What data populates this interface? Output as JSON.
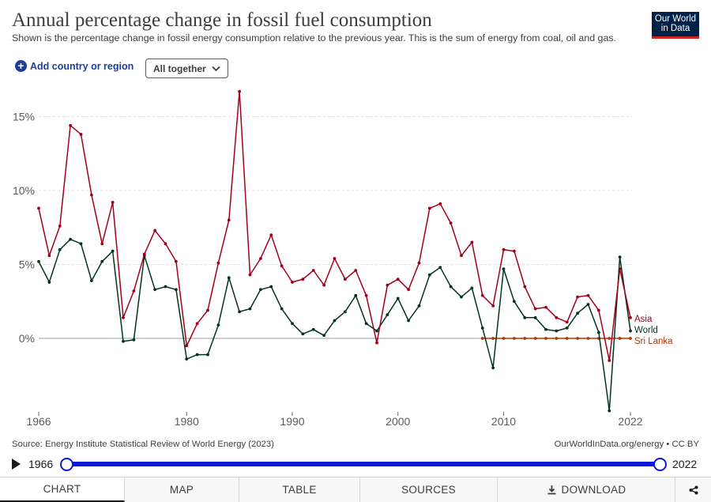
{
  "header": {
    "title": "Annual percentage change in fossil fuel consumption",
    "subtitle": "Shown is the percentage change in fossil energy consumption relative to the previous year. This is the sum of energy from coal, oil and gas.",
    "logo_line1": "Our World",
    "logo_line2": "in Data"
  },
  "controls": {
    "add_label": "Add country or region",
    "select_value": "All together"
  },
  "footer": {
    "source": "Source: Energy Institute Statistical Review of World Energy (2023)",
    "origin": "OurWorldInData.org/energy • CC BY"
  },
  "timeline": {
    "start": "1966",
    "end": "2022"
  },
  "tabs": [
    "CHART",
    "MAP",
    "TABLE",
    "SOURCES",
    "DOWNLOAD"
  ],
  "colors": {
    "asia": "#a2001a",
    "world": "#00341c",
    "sri_lanka": "#b13507",
    "zero_line": "#9e9e9e",
    "grid": "#dddddd",
    "accent": "#0b1ad6"
  },
  "icons": {
    "play": "play-icon",
    "add": "plus-circle-icon",
    "select": "chevron-down-icon",
    "download": "download-icon",
    "share": "share-icon"
  },
  "chart_data": {
    "type": "line",
    "title": "Annual percentage change in fossil fuel consumption",
    "xlim": [
      1966,
      2022
    ],
    "ylim": [
      -5,
      17
    ],
    "x_ticks": [
      1966,
      1980,
      1990,
      2000,
      2010,
      2022
    ],
    "x_tick_labels": [
      "1966",
      "1980",
      "1990",
      "2000",
      "2010",
      "2022"
    ],
    "y_ticks": [
      0,
      5,
      10,
      15
    ],
    "y_tick_labels": [
      "0%",
      "5%",
      "10%",
      "15%"
    ],
    "grid": true,
    "legend": "right end labels",
    "series": [
      {
        "name": "Asia",
        "color": "#a2001a",
        "x": [
          1966,
          1967,
          1968,
          1969,
          1970,
          1971,
          1972,
          1973,
          1974,
          1975,
          1976,
          1977,
          1978,
          1979,
          1980,
          1981,
          1982,
          1983,
          1984,
          1985,
          1986,
          1987,
          1988,
          1989,
          1990,
          1991,
          1992,
          1993,
          1994,
          1995,
          1996,
          1997,
          1998,
          1999,
          2000,
          2001,
          2002,
          2003,
          2004,
          2005,
          2006,
          2007,
          2008,
          2009,
          2010,
          2011,
          2012,
          2013,
          2014,
          2015,
          2016,
          2017,
          2018,
          2019,
          2020,
          2021,
          2022
        ],
        "values": [
          8.8,
          5.6,
          7.6,
          14.4,
          13.8,
          9.7,
          6.4,
          9.2,
          1.4,
          3.2,
          5.7,
          7.3,
          6.4,
          5.2,
          -0.5,
          1.0,
          1.9,
          5.1,
          8.0,
          16.7,
          4.3,
          5.4,
          7.0,
          4.9,
          3.8,
          4.0,
          4.6,
          3.6,
          5.4,
          4.0,
          4.6,
          2.9,
          -0.3,
          3.6,
          4.0,
          3.3,
          5.1,
          8.8,
          9.1,
          7.8,
          5.6,
          6.5,
          2.9,
          2.2,
          6.0,
          5.9,
          3.5,
          2.0,
          2.1,
          1.4,
          1.1,
          2.8,
          2.9,
          1.9,
          -1.5,
          4.7,
          1.4
        ]
      },
      {
        "name": "World",
        "color": "#00341c",
        "x": [
          1966,
          1967,
          1968,
          1969,
          1970,
          1971,
          1972,
          1973,
          1974,
          1975,
          1976,
          1977,
          1978,
          1979,
          1980,
          1981,
          1982,
          1983,
          1984,
          1985,
          1986,
          1987,
          1988,
          1989,
          1990,
          1991,
          1992,
          1993,
          1994,
          1995,
          1996,
          1997,
          1998,
          1999,
          2000,
          2001,
          2002,
          2003,
          2004,
          2005,
          2006,
          2007,
          2008,
          2009,
          2010,
          2011,
          2012,
          2013,
          2014,
          2015,
          2016,
          2017,
          2018,
          2019,
          2020,
          2021,
          2022
        ],
        "values": [
          5.2,
          3.8,
          6.0,
          6.7,
          6.4,
          3.9,
          5.2,
          5.9,
          -0.2,
          -0.1,
          5.6,
          3.3,
          3.5,
          3.3,
          -1.4,
          -1.1,
          -1.1,
          0.9,
          4.1,
          1.8,
          2.0,
          3.3,
          3.5,
          2.0,
          1.0,
          0.3,
          0.6,
          0.2,
          1.2,
          1.8,
          2.9,
          1.0,
          0.5,
          1.6,
          2.7,
          1.2,
          2.2,
          4.3,
          4.8,
          3.5,
          2.8,
          3.4,
          0.7,
          -2.0,
          4.7,
          2.5,
          1.4,
          1.4,
          0.6,
          0.5,
          0.7,
          1.7,
          2.3,
          0.4,
          -4.9,
          5.5,
          0.5
        ]
      },
      {
        "name": "Sri Lanka",
        "color": "#b13507",
        "x": [
          2008,
          2009,
          2010,
          2011,
          2012,
          2013,
          2014,
          2015,
          2016,
          2017,
          2018,
          2019,
          2020,
          2021,
          2022
        ],
        "values": [
          0,
          0,
          0,
          0,
          0,
          0,
          0,
          0,
          0,
          0,
          0,
          0,
          0,
          0,
          0
        ]
      }
    ]
  }
}
